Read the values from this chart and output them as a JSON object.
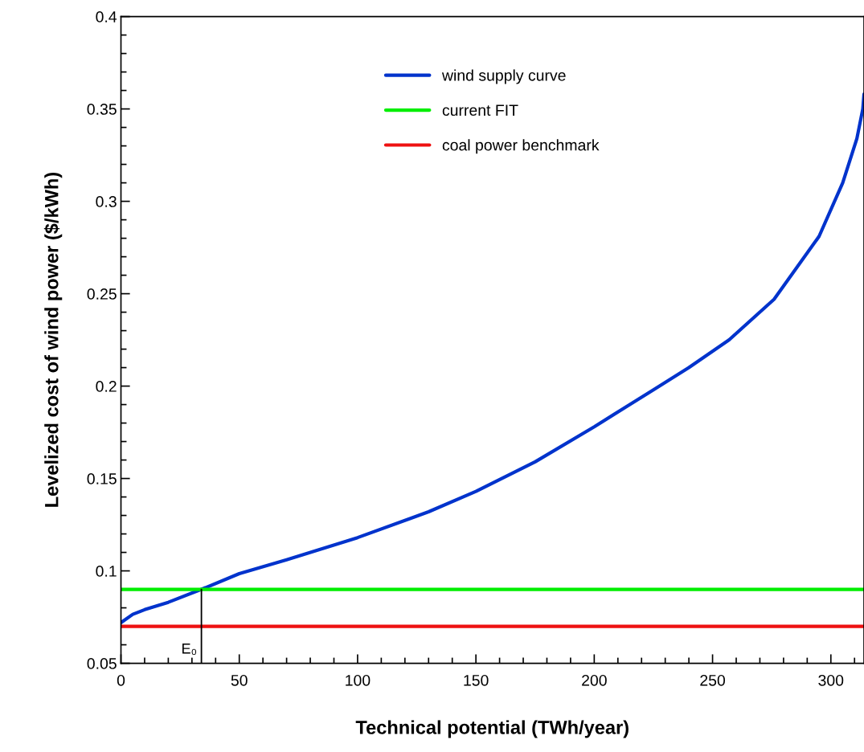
{
  "chart_data": {
    "type": "line",
    "xlabel": "Technical potential (TWh/year)",
    "ylabel": "Levelized cost of wind power ($/kWh)",
    "xlim": [
      0,
      314
    ],
    "xticks": [
      0,
      50,
      100,
      150,
      200,
      250,
      300
    ],
    "ylim": [
      0.05,
      0.4
    ],
    "yticks": [
      0.05,
      0.1,
      0.15,
      0.2,
      0.25,
      0.3,
      0.35,
      0.4
    ],
    "legend": "top",
    "grid": false,
    "series": [
      {
        "name": "wind supply curve",
        "color": "#0033cc",
        "x": [
          0,
          5,
          10,
          20,
          34,
          50,
          70,
          100,
          130,
          150,
          175,
          200,
          225,
          240,
          257,
          276,
          295,
          305,
          311,
          313.5,
          314
        ],
        "values": [
          0.072,
          0.0765,
          0.079,
          0.083,
          0.09,
          0.0985,
          0.106,
          0.118,
          0.132,
          0.143,
          0.159,
          0.178,
          0.198,
          0.21,
          0.225,
          0.247,
          0.281,
          0.31,
          0.334,
          0.35,
          0.358
        ]
      },
      {
        "name": "current FIT",
        "color": "#00ee00",
        "x": [
          0,
          314
        ],
        "values": [
          0.09,
          0.09
        ]
      },
      {
        "name": "coal power benchmark",
        "color": "#ee1111",
        "x": [
          0,
          314
        ],
        "values": [
          0.07,
          0.07
        ]
      },
      {
        "color": "#000000",
        "x": [
          34,
          34
        ],
        "values": [
          0.05,
          0.09
        ]
      }
    ],
    "annotations": [
      {
        "text": "E₀",
        "x": 34,
        "y": 0.05
      }
    ]
  }
}
